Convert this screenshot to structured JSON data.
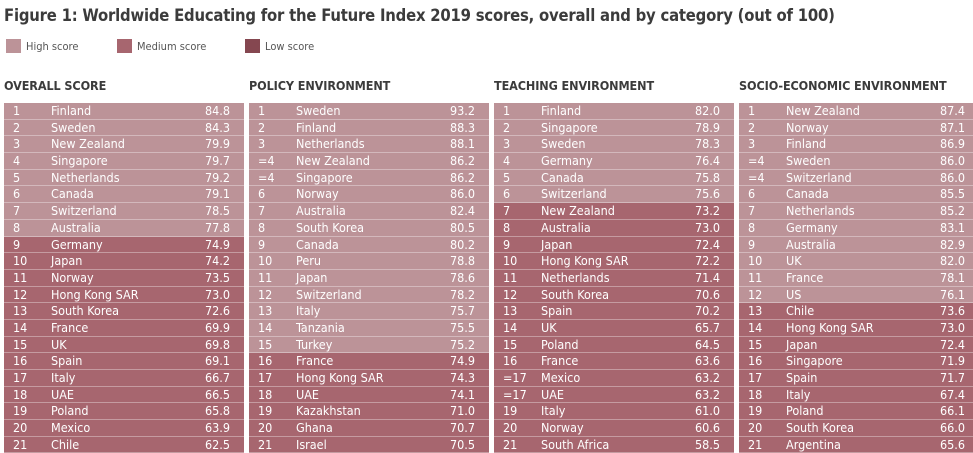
{
  "colors": {
    "high": "#bc9398",
    "medium": "#a7666f",
    "low": "#854750"
  },
  "title": "Figure 1: Worldwide Educating for the Future Index 2019 scores, overall and by category (out of 100)",
  "legend": [
    {
      "label": "High score",
      "level": "high"
    },
    {
      "label": "Medium score",
      "level": "medium"
    },
    {
      "label": "Low score",
      "level": "low"
    }
  ],
  "chart_data": [
    {
      "type": "table",
      "title": "OVERALL SCORE",
      "columns": [
        "rank",
        "country",
        "score"
      ],
      "rows": [
        {
          "rank": "1",
          "country": "Finland",
          "score": "84.8",
          "level": "high"
        },
        {
          "rank": "2",
          "country": "Sweden",
          "score": "84.3",
          "level": "high"
        },
        {
          "rank": "3",
          "country": "New Zealand",
          "score": "79.9",
          "level": "high"
        },
        {
          "rank": "4",
          "country": "Singapore",
          "score": "79.7",
          "level": "high"
        },
        {
          "rank": "5",
          "country": "Netherlands",
          "score": "79.2",
          "level": "high"
        },
        {
          "rank": "6",
          "country": "Canada",
          "score": "79.1",
          "level": "high"
        },
        {
          "rank": "7",
          "country": "Switzerland",
          "score": "78.5",
          "level": "high"
        },
        {
          "rank": "8",
          "country": "Australia",
          "score": "77.8",
          "level": "high"
        },
        {
          "rank": "9",
          "country": "Germany",
          "score": "74.9",
          "level": "medium"
        },
        {
          "rank": "10",
          "country": "Japan",
          "score": "74.2",
          "level": "medium"
        },
        {
          "rank": "11",
          "country": "Norway",
          "score": "73.5",
          "level": "medium"
        },
        {
          "rank": "12",
          "country": "Hong Kong SAR",
          "score": "73.0",
          "level": "medium"
        },
        {
          "rank": "13",
          "country": "South Korea",
          "score": "72.6",
          "level": "medium"
        },
        {
          "rank": "14",
          "country": "France",
          "score": "69.9",
          "level": "medium"
        },
        {
          "rank": "15",
          "country": "UK",
          "score": "69.8",
          "level": "medium"
        },
        {
          "rank": "16",
          "country": "Spain",
          "score": "69.1",
          "level": "medium"
        },
        {
          "rank": "17",
          "country": "Italy",
          "score": "66.7",
          "level": "medium"
        },
        {
          "rank": "18",
          "country": "UAE",
          "score": "66.5",
          "level": "medium"
        },
        {
          "rank": "19",
          "country": "Poland",
          "score": "65.8",
          "level": "medium"
        },
        {
          "rank": "20",
          "country": "Mexico",
          "score": "63.9",
          "level": "medium"
        },
        {
          "rank": "21",
          "country": "Chile",
          "score": "62.5",
          "level": "medium"
        }
      ]
    },
    {
      "type": "table",
      "title": "POLICY ENVIRONMENT",
      "columns": [
        "rank",
        "country",
        "score"
      ],
      "rows": [
        {
          "rank": "1",
          "country": "Sweden",
          "score": "93.2",
          "level": "high"
        },
        {
          "rank": "2",
          "country": "Finland",
          "score": "88.3",
          "level": "high"
        },
        {
          "rank": "3",
          "country": "Netherlands",
          "score": "88.1",
          "level": "high"
        },
        {
          "rank": "=4",
          "country": "New Zealand",
          "score": "86.2",
          "level": "high"
        },
        {
          "rank": "=4",
          "country": "Singapore",
          "score": "86.2",
          "level": "high"
        },
        {
          "rank": "6",
          "country": "Norway",
          "score": "86.0",
          "level": "high"
        },
        {
          "rank": "7",
          "country": "Australia",
          "score": "82.4",
          "level": "high"
        },
        {
          "rank": "8",
          "country": "South Korea",
          "score": "80.5",
          "level": "high"
        },
        {
          "rank": "9",
          "country": "Canada",
          "score": "80.2",
          "level": "high"
        },
        {
          "rank": "10",
          "country": "Peru",
          "score": "78.8",
          "level": "high"
        },
        {
          "rank": "11",
          "country": "Japan",
          "score": "78.6",
          "level": "high"
        },
        {
          "rank": "12",
          "country": "Switzerland",
          "score": "78.2",
          "level": "high"
        },
        {
          "rank": "13",
          "country": "Italy",
          "score": "75.7",
          "level": "high"
        },
        {
          "rank": "14",
          "country": "Tanzania",
          "score": "75.5",
          "level": "high"
        },
        {
          "rank": "15",
          "country": "Turkey",
          "score": "75.2",
          "level": "high"
        },
        {
          "rank": "16",
          "country": "France",
          "score": "74.9",
          "level": "medium"
        },
        {
          "rank": "17",
          "country": "Hong Kong SAR",
          "score": "74.3",
          "level": "medium"
        },
        {
          "rank": "18",
          "country": "UAE",
          "score": "74.1",
          "level": "medium"
        },
        {
          "rank": "19",
          "country": "Kazakhstan",
          "score": "71.0",
          "level": "medium"
        },
        {
          "rank": "20",
          "country": "Ghana",
          "score": "70.7",
          "level": "medium"
        },
        {
          "rank": "21",
          "country": "Israel",
          "score": "70.5",
          "level": "medium"
        }
      ]
    },
    {
      "type": "table",
      "title": "TEACHING ENVIRONMENT",
      "columns": [
        "rank",
        "country",
        "score"
      ],
      "rows": [
        {
          "rank": "1",
          "country": "Finland",
          "score": "82.0",
          "level": "high"
        },
        {
          "rank": "2",
          "country": "Singapore",
          "score": "78.9",
          "level": "high"
        },
        {
          "rank": "3",
          "country": "Sweden",
          "score": "78.3",
          "level": "high"
        },
        {
          "rank": "4",
          "country": "Germany",
          "score": "76.4",
          "level": "high"
        },
        {
          "rank": "5",
          "country": "Canada",
          "score": "75.8",
          "level": "high"
        },
        {
          "rank": "6",
          "country": "Switzerland",
          "score": "75.6",
          "level": "high"
        },
        {
          "rank": "7",
          "country": "New Zealand",
          "score": "73.2",
          "level": "medium"
        },
        {
          "rank": "8",
          "country": "Australia",
          "score": "73.0",
          "level": "medium"
        },
        {
          "rank": "9",
          "country": "Japan",
          "score": "72.4",
          "level": "medium"
        },
        {
          "rank": "10",
          "country": "Hong Kong SAR",
          "score": "72.2",
          "level": "medium"
        },
        {
          "rank": "11",
          "country": "Netherlands",
          "score": "71.4",
          "level": "medium"
        },
        {
          "rank": "12",
          "country": "South Korea",
          "score": "70.6",
          "level": "medium"
        },
        {
          "rank": "13",
          "country": "Spain",
          "score": "70.2",
          "level": "medium"
        },
        {
          "rank": "14",
          "country": "UK",
          "score": "65.7",
          "level": "medium"
        },
        {
          "rank": "15",
          "country": "Poland",
          "score": "64.5",
          "level": "medium"
        },
        {
          "rank": "16",
          "country": "France",
          "score": "63.6",
          "level": "medium"
        },
        {
          "rank": "=17",
          "country": "Mexico",
          "score": "63.2",
          "level": "medium"
        },
        {
          "rank": "=17",
          "country": "UAE",
          "score": "63.2",
          "level": "medium"
        },
        {
          "rank": "19",
          "country": "Italy",
          "score": "61.0",
          "level": "medium"
        },
        {
          "rank": "20",
          "country": "Norway",
          "score": "60.6",
          "level": "medium"
        },
        {
          "rank": "21",
          "country": "South Africa",
          "score": "58.5",
          "level": "medium"
        }
      ]
    },
    {
      "type": "table",
      "title": "SOCIO-ECONOMIC ENVIRONMENT",
      "columns": [
        "rank",
        "country",
        "score"
      ],
      "rows": [
        {
          "rank": "1",
          "country": "New Zealand",
          "score": "87.4",
          "level": "high"
        },
        {
          "rank": "2",
          "country": "Norway",
          "score": "87.1",
          "level": "high"
        },
        {
          "rank": "3",
          "country": "Finland",
          "score": "86.9",
          "level": "high"
        },
        {
          "rank": "=4",
          "country": "Sweden",
          "score": "86.0",
          "level": "high"
        },
        {
          "rank": "=4",
          "country": "Switzerland",
          "score": "86.0",
          "level": "high"
        },
        {
          "rank": "6",
          "country": "Canada",
          "score": "85.5",
          "level": "high"
        },
        {
          "rank": "7",
          "country": "Netherlands",
          "score": "85.2",
          "level": "high"
        },
        {
          "rank": "8",
          "country": "Germany",
          "score": "83.1",
          "level": "high"
        },
        {
          "rank": "9",
          "country": "Australia",
          "score": "82.9",
          "level": "high"
        },
        {
          "rank": "10",
          "country": "UK",
          "score": "82.0",
          "level": "high"
        },
        {
          "rank": "11",
          "country": "France",
          "score": "78.1",
          "level": "high"
        },
        {
          "rank": "12",
          "country": "US",
          "score": "76.1",
          "level": "high"
        },
        {
          "rank": "13",
          "country": "Chile",
          "score": "73.6",
          "level": "medium"
        },
        {
          "rank": "14",
          "country": "Hong Kong SAR",
          "score": "73.0",
          "level": "medium"
        },
        {
          "rank": "15",
          "country": "Japan",
          "score": "72.4",
          "level": "medium"
        },
        {
          "rank": "16",
          "country": "Singapore",
          "score": "71.9",
          "level": "medium"
        },
        {
          "rank": "17",
          "country": "Spain",
          "score": "71.7",
          "level": "medium"
        },
        {
          "rank": "18",
          "country": "Italy",
          "score": "67.4",
          "level": "medium"
        },
        {
          "rank": "19",
          "country": "Poland",
          "score": "66.1",
          "level": "medium"
        },
        {
          "rank": "20",
          "country": "South Korea",
          "score": "66.0",
          "level": "medium"
        },
        {
          "rank": "21",
          "country": "Argentina",
          "score": "65.6",
          "level": "medium"
        }
      ]
    }
  ]
}
